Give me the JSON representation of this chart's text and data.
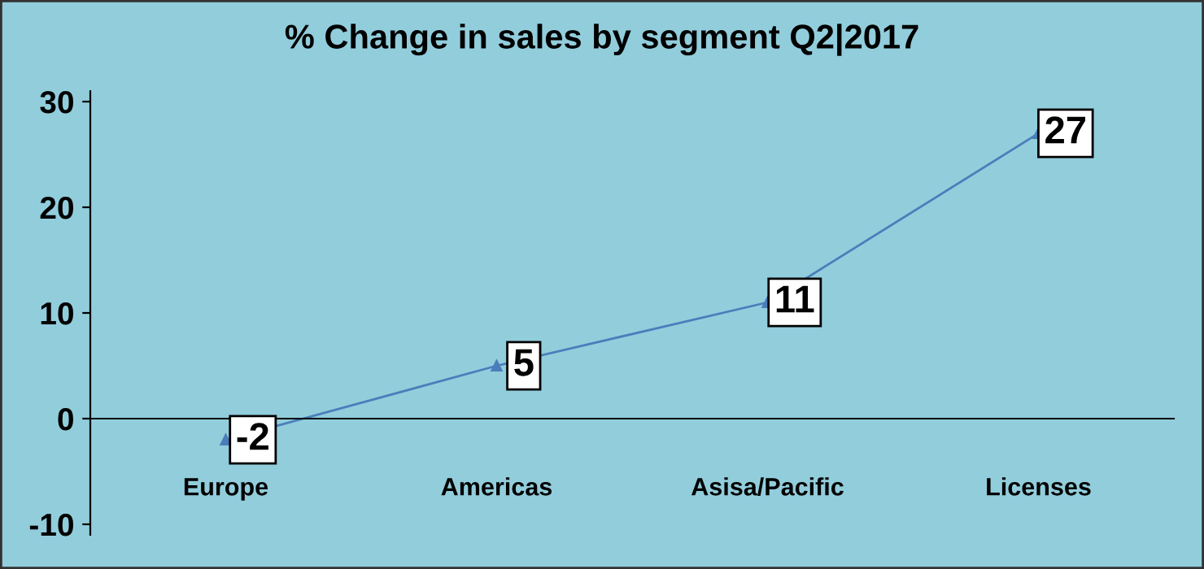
{
  "chart_data": {
    "type": "line",
    "title": "% Change in sales by segment Q2|2017",
    "categories": [
      "Europe",
      "Americas",
      "Asisa/Pacific",
      "Licenses"
    ],
    "series": [
      {
        "color": "#4a7ebb",
        "values": [
          -2,
          5,
          11,
          27
        ]
      }
    ],
    "ylim": [
      -11,
      31
    ],
    "yticks": [
      -10,
      0,
      10,
      20,
      30
    ],
    "grid": false,
    "marker": "triangle",
    "legend": false,
    "data_labels": true,
    "line_style": "solid"
  }
}
